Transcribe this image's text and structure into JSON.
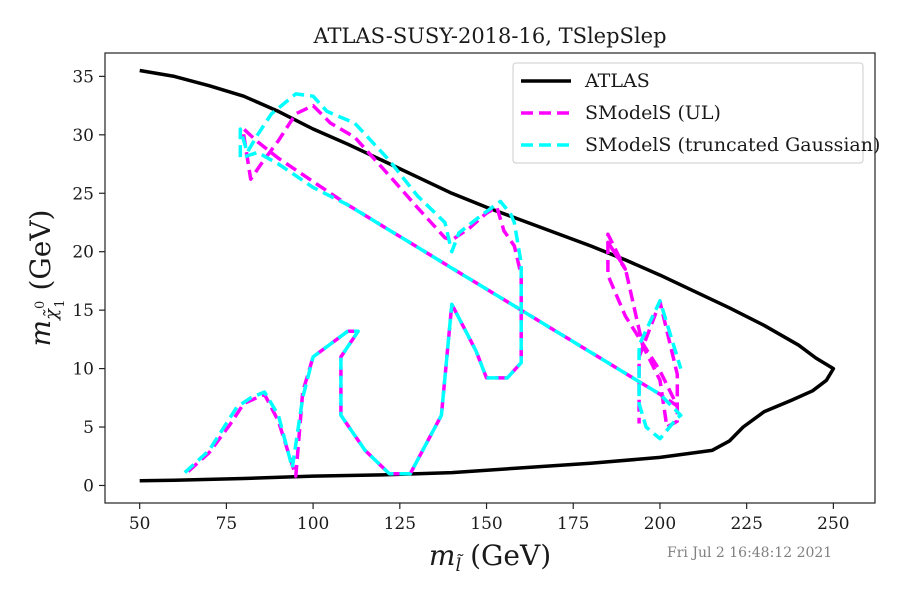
{
  "chart_data": {
    "type": "line",
    "title": "ATLAS-SUSY-2018-16, TSlepSlep",
    "xlabel": "(GeV)",
    "ylabel": "(GeV)",
    "xlabel_math": "m_l~",
    "ylabel_math": "m_chi~1^0",
    "xlim": [
      40,
      262
    ],
    "ylim": [
      -1.5,
      37
    ],
    "xticks": [
      50,
      75,
      100,
      125,
      150,
      175,
      200,
      225,
      250
    ],
    "yticks": [
      0,
      5,
      10,
      15,
      20,
      25,
      30,
      35
    ],
    "grid": false,
    "legend_position": "top-right",
    "timestamp": "Fri Jul  2 16:48:12 2021",
    "series": [
      {
        "name": "ATLAS",
        "color": "#000000",
        "style": "solid",
        "x": [
          50,
          60,
          70,
          80,
          90,
          100,
          110,
          120,
          130,
          140,
          150,
          160,
          170,
          180,
          190,
          200,
          210,
          220,
          230,
          240,
          245,
          250,
          248,
          244,
          238,
          230,
          224,
          220,
          215,
          200,
          180,
          160,
          140,
          120,
          100,
          80,
          60,
          50
        ],
        "y": [
          35.5,
          35.0,
          34.2,
          33.3,
          32.0,
          30.5,
          29.2,
          27.8,
          26.4,
          25.0,
          23.8,
          22.7,
          21.6,
          20.5,
          19.3,
          18.0,
          16.6,
          15.2,
          13.7,
          12.0,
          10.9,
          10.0,
          9.0,
          8.1,
          7.3,
          6.3,
          5.0,
          3.8,
          3.0,
          2.4,
          1.9,
          1.5,
          1.1,
          0.9,
          0.8,
          0.6,
          0.45,
          0.4
        ]
      },
      {
        "name": "SModelS (UL)",
        "color": "#ff00ff",
        "style": "dashed",
        "x": [
          64,
          70,
          76,
          80,
          86,
          90,
          95,
          97,
          100,
          110,
          113,
          108,
          108,
          115,
          122,
          128,
          137,
          140,
          147,
          150,
          156,
          160,
          160,
          158,
          155,
          153,
          150,
          145,
          140,
          138,
          130,
          122,
          112,
          105,
          100,
          95,
          90,
          85,
          82,
          80,
          80,
          84,
          90,
          95,
          100,
          110,
          120,
          130,
          140,
          150,
          160,
          170,
          180,
          190,
          200,
          205,
          200,
          190,
          185,
          185,
          190,
          185,
          190,
          195,
          200,
          202,
          205,
          205,
          205,
          200,
          194,
          194
        ],
        "y": [
          1.2,
          2.8,
          5.2,
          7.0,
          7.8,
          5.5,
          0.8,
          8.0,
          11.0,
          13.2,
          13.2,
          11.0,
          6.0,
          3.0,
          1.0,
          1.0,
          6.0,
          15.5,
          11.5,
          9.2,
          9.2,
          10.5,
          18.0,
          20.5,
          21.8,
          23.8,
          23.3,
          22.0,
          21.0,
          21.2,
          23.8,
          26.5,
          29.8,
          31.0,
          32.5,
          31.8,
          29.5,
          27.5,
          26.2,
          30.0,
          30.5,
          29.4,
          28.0,
          27.0,
          26.0,
          24.0,
          22.2,
          20.4,
          18.6,
          16.8,
          15.0,
          13.2,
          11.4,
          9.6,
          7.8,
          6.8,
          9.8,
          14.5,
          18.0,
          21.5,
          18.5,
          20.8,
          18.6,
          12.0,
          9.0,
          5.0,
          5.5,
          7.5,
          9.5,
          15.7,
          11.0,
          5.3
        ]
      },
      {
        "name": "SModelS (truncated Gaussian)",
        "color": "#00ffff",
        "style": "dashed",
        "x": [
          63,
          70,
          78,
          82,
          86,
          90,
          94,
          97,
          100,
          110,
          113,
          108,
          108,
          115,
          122,
          128,
          137,
          140,
          147,
          150,
          156,
          160,
          160,
          158,
          157,
          154,
          148,
          142,
          140,
          138,
          130,
          122,
          112,
          104,
          100,
          95,
          88,
          84,
          81,
          79,
          79,
          84,
          90,
          95,
          100,
          110,
          120,
          130,
          140,
          150,
          160,
          170,
          180,
          190,
          200,
          206,
          205,
          200,
          196,
          194,
          194,
          200,
          206
        ],
        "y": [
          1.1,
          3.0,
          6.7,
          7.5,
          8.0,
          6.0,
          1.5,
          7.5,
          11.0,
          13.2,
          13.2,
          11.0,
          6.0,
          3.0,
          1.0,
          1.0,
          6.0,
          15.5,
          11.5,
          9.2,
          9.2,
          10.5,
          19.0,
          22.5,
          23.2,
          24.3,
          23.0,
          21.6,
          20.0,
          22.5,
          24.8,
          27.8,
          31.0,
          32.0,
          33.3,
          33.5,
          31.8,
          30.0,
          28.5,
          30.5,
          28.0,
          28.5,
          27.5,
          26.5,
          25.5,
          24.0,
          22.2,
          20.4,
          18.6,
          16.8,
          15.0,
          13.2,
          11.4,
          9.6,
          7.8,
          6.0,
          5.8,
          4.0,
          5.0,
          7.0,
          12.0,
          15.8,
          10.0
        ]
      }
    ]
  }
}
